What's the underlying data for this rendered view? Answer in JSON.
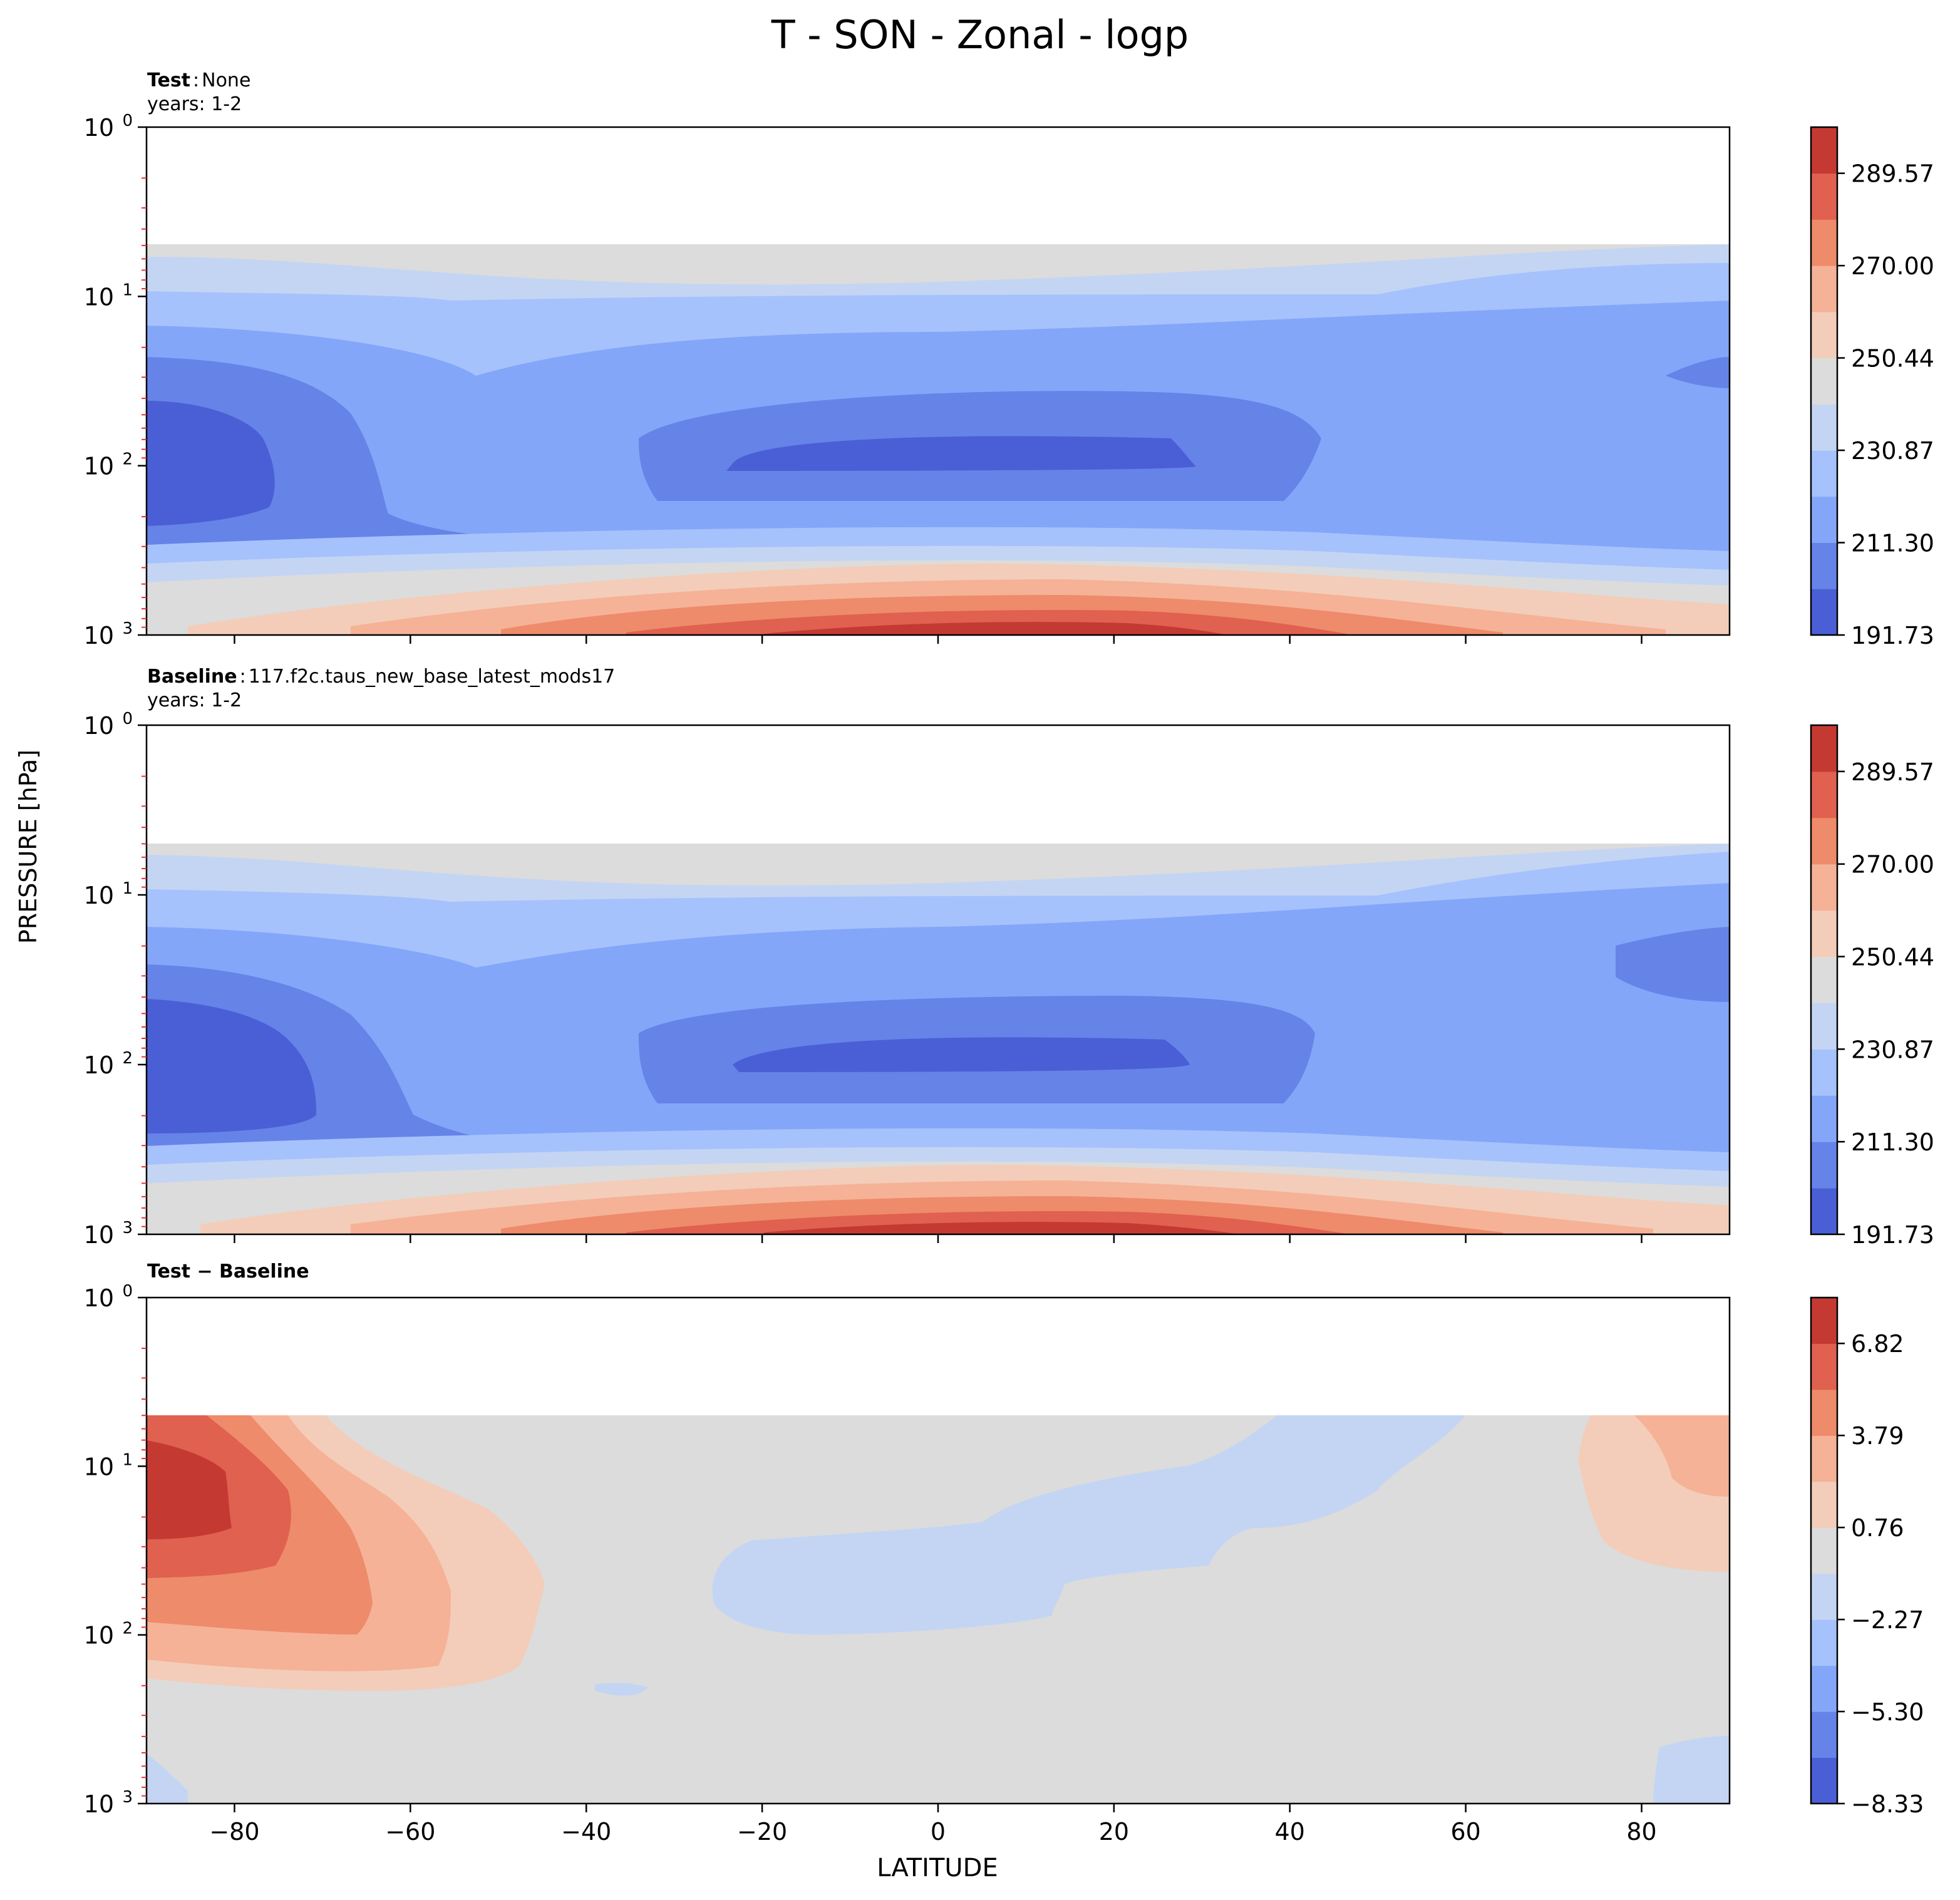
{
  "figure": {
    "title": "T - SON - Zonal - logp",
    "ylabel": "PRESSURE [hPa]",
    "xlabel": "LATITUDE"
  },
  "colors": {
    "cmap": [
      "#4a5fd6",
      "#6683e8",
      "#84a6f9",
      "#a5c2fd",
      "#c4d5f3",
      "#dcdcdc",
      "#f3cdb9",
      "#f5b297",
      "#ee8b6a",
      "#e06150",
      "#c43a33"
    ]
  },
  "chart_data": [
    {
      "type": "contourf",
      "title_bold": "Test",
      "title_rest": "None",
      "subtitle": "years: 1-2",
      "xlabel": "",
      "ylabel": "",
      "xlim": [
        -90,
        90
      ],
      "ylim_log": [
        1000,
        1
      ],
      "y_scale": "log",
      "y_ticks": [
        "10^0",
        "10^1",
        "10^2",
        "10^3"
      ],
      "x_tick_values": [
        -80,
        -60,
        -40,
        -20,
        0,
        20,
        40,
        60,
        80
      ],
      "x_tick_labels": [],
      "data_top_hpa": 5,
      "colorbar": {
        "ticks": [
          "191.73",
          "211.30",
          "230.87",
          "250.44",
          "270.00",
          "289.57"
        ],
        "levels": [
          191.73,
          201.51,
          211.3,
          221.08,
          230.87,
          240.65,
          250.44,
          260.22,
          270.0,
          279.79,
          289.57,
          299.35
        ]
      }
    },
    {
      "type": "contourf",
      "title_bold": "Baseline",
      "title_rest": "117.f2c.taus_new_base_latest_mods17",
      "subtitle": "years: 1-2",
      "xlabel": "",
      "ylabel": "",
      "xlim": [
        -90,
        90
      ],
      "ylim_log": [
        1000,
        1
      ],
      "y_scale": "log",
      "y_ticks": [
        "10^0",
        "10^1",
        "10^2",
        "10^3"
      ],
      "x_tick_values": [
        -80,
        -60,
        -40,
        -20,
        0,
        20,
        40,
        60,
        80
      ],
      "x_tick_labels": [],
      "data_top_hpa": 5,
      "colorbar": {
        "ticks": [
          "191.73",
          "211.30",
          "230.87",
          "250.44",
          "270.00",
          "289.57"
        ],
        "levels": [
          191.73,
          201.51,
          211.3,
          221.08,
          230.87,
          240.65,
          250.44,
          260.22,
          270.0,
          279.79,
          289.57,
          299.35
        ]
      }
    },
    {
      "type": "contourf",
      "title_bold": "Test − Baseline",
      "title_rest": "",
      "subtitle": "",
      "xlabel": "LATITUDE",
      "ylabel": "",
      "xlim": [
        -90,
        90
      ],
      "ylim_log": [
        1000,
        1
      ],
      "y_scale": "log",
      "y_ticks": [
        "10^0",
        "10^1",
        "10^2",
        "10^3"
      ],
      "x_tick_values": [
        -80,
        -60,
        -40,
        -20,
        0,
        20,
        40,
        60,
        80
      ],
      "x_tick_labels": [
        "−80",
        "−60",
        "−40",
        "−20",
        "0",
        "20",
        "40",
        "60",
        "80"
      ],
      "data_top_hpa": 5,
      "colorbar": {
        "ticks": [
          "−8.33",
          "−5.30",
          "−2.27",
          "0.76",
          "3.79",
          "6.82"
        ],
        "levels": [
          -8.33,
          -6.82,
          -5.3,
          -3.79,
          -2.27,
          -0.76,
          0.76,
          2.27,
          3.79,
          5.3,
          6.82,
          8.33
        ]
      }
    }
  ]
}
